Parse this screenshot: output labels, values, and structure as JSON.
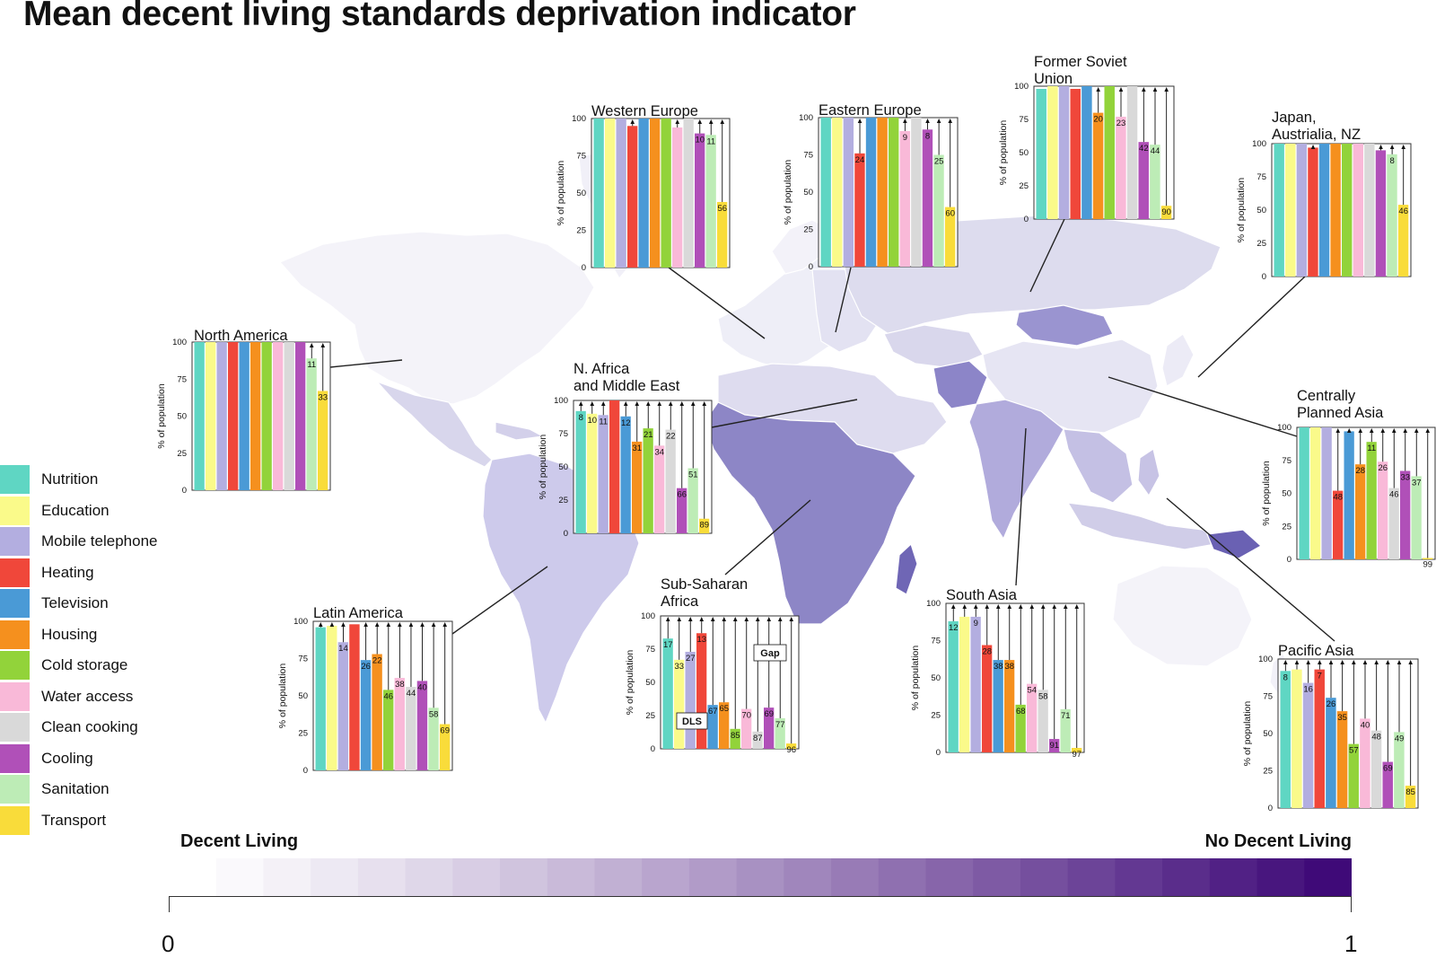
{
  "title": "Mean decent living standards deprivation indicator",
  "colors": {
    "Nutrition": "#5fd6c3",
    "Education": "#fafa8a",
    "Mobile telephone": "#b3aee0",
    "Heating": "#f0473a",
    "Television": "#4a9ad6",
    "Housing": "#f5901e",
    "Cold storage": "#92d33a",
    "Water access": "#f9b9d8",
    "Clean cooking": "#d9d9d9",
    "Cooling": "#b050b8",
    "Sanitation": "#bdecb6",
    "Transport": "#f9dc3a"
  },
  "legend": {
    "items": [
      "Nutrition",
      "Education",
      "Mobile telephone",
      "Heating",
      "Television",
      "Housing",
      "Cold storage",
      "Water access",
      "Clean cooking",
      "Cooling",
      "Sanitation",
      "Transport"
    ]
  },
  "scale": {
    "left_label": "Decent Living",
    "right_label": "No Decent Living",
    "min": "0",
    "max": "1",
    "color_start": "#ffffff",
    "color_end": "#3f0a78"
  },
  "chart_data": {
    "type": "bar",
    "title": "Mean decent living standards deprivation indicator",
    "ylabel": "% of population",
    "ylim": [
      0,
      100
    ],
    "yticks": [
      "0",
      "25",
      "50",
      "75",
      "100"
    ],
    "categories": [
      "Nutrition",
      "Education",
      "Mobile telephone",
      "Heating",
      "Television",
      "Housing",
      "Cold storage",
      "Water access",
      "Clean cooking",
      "Cooling",
      "Sanitation",
      "Transport"
    ],
    "value_meaning": "DLS bar height is % of population with decent living; label is the gap (% deprived)",
    "annotations": [
      "Gap",
      "DLS"
    ],
    "regions": [
      {
        "name": "North America",
        "gaps": [
          0,
          0,
          0,
          0,
          0,
          0,
          0,
          0,
          0,
          0,
          11,
          33
        ],
        "labels": [
          "",
          "",
          "",
          "",
          "",
          "",
          "",
          "",
          "",
          "",
          "11",
          "33"
        ]
      },
      {
        "name": "Western Europe",
        "gaps": [
          0,
          0,
          0,
          5,
          0,
          0,
          0,
          6,
          0,
          10,
          11,
          56
        ],
        "labels": [
          "",
          "",
          "",
          "",
          "",
          "",
          "",
          "",
          "",
          "10",
          "11",
          "56"
        ]
      },
      {
        "name": "Eastern Europe",
        "gaps": [
          0,
          0,
          0,
          24,
          0,
          0,
          0,
          9,
          0,
          8,
          25,
          60
        ],
        "labels": [
          "",
          "",
          "",
          "24",
          "",
          "",
          "",
          "9",
          "",
          "8",
          "25",
          "60"
        ]
      },
      {
        "name": "Former Soviet Union",
        "gaps": [
          2,
          0,
          0,
          2,
          0,
          20,
          0,
          23,
          0,
          42,
          44,
          90
        ],
        "labels": [
          "",
          "",
          "",
          "",
          "",
          "20",
          "",
          "23",
          "",
          "42",
          "44",
          "90"
        ]
      },
      {
        "name": "Japan, Austrialia, NZ",
        "gaps": [
          0,
          0,
          0,
          3,
          0,
          0,
          0,
          0,
          0,
          5,
          8,
          46
        ],
        "labels": [
          "",
          "",
          "",
          "",
          "",
          "",
          "",
          "",
          "",
          "",
          "8",
          "46"
        ]
      },
      {
        "name": "N. Africa and Middle East",
        "gaps": [
          8,
          10,
          11,
          0,
          12,
          31,
          21,
          34,
          22,
          66,
          51,
          89
        ],
        "labels": [
          "8",
          "10",
          "11",
          "",
          "12",
          "31",
          "21",
          "34",
          "22",
          "66",
          "51",
          "89"
        ]
      },
      {
        "name": "Centrally Planned Asia",
        "gaps": [
          0,
          0,
          0,
          48,
          3,
          28,
          11,
          26,
          46,
          33,
          37,
          99
        ],
        "labels": [
          "",
          "",
          "",
          "48",
          "",
          "28",
          "11",
          "26",
          "46",
          "33",
          "37",
          "99"
        ]
      },
      {
        "name": "Latin America",
        "gaps": [
          4,
          3,
          14,
          2,
          26,
          22,
          46,
          38,
          44,
          40,
          58,
          69
        ],
        "labels": [
          "",
          "",
          "14",
          "",
          "26",
          "22",
          "46",
          "38",
          "44",
          "40",
          "58",
          "69"
        ]
      },
      {
        "name": "Sub-Saharan Africa",
        "gaps": [
          17,
          33,
          27,
          13,
          67,
          65,
          85,
          70,
          87,
          69,
          77,
          96
        ],
        "labels": [
          "17",
          "33",
          "27",
          "13",
          "67",
          "65",
          "85",
          "70",
          "87",
          "69",
          "77",
          "96"
        ]
      },
      {
        "name": "South Asia",
        "gaps": [
          12,
          9,
          9,
          28,
          38,
          38,
          68,
          54,
          58,
          91,
          71,
          97
        ],
        "labels": [
          "12",
          "",
          "9",
          "28",
          "38",
          "38",
          "68",
          "54",
          "58",
          "91",
          "71",
          "97"
        ]
      },
      {
        "name": "Pacific Asia",
        "gaps": [
          8,
          7,
          16,
          7,
          26,
          35,
          57,
          40,
          48,
          69,
          49,
          85
        ],
        "labels": [
          "8",
          "",
          "16",
          "7",
          "26",
          "35",
          "57",
          "40",
          "48",
          "69",
          "49",
          "85"
        ]
      }
    ]
  }
}
